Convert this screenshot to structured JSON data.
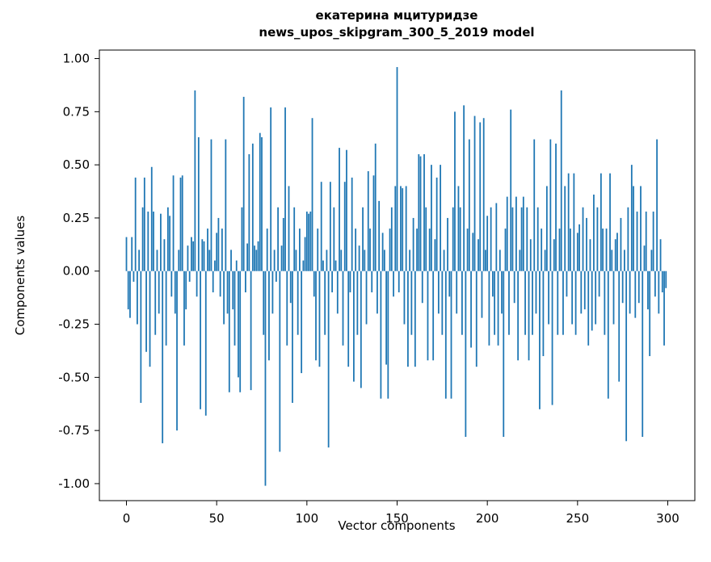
{
  "figure": {
    "title_line1": "екатерина мцитуридзе",
    "title_line2": "news_upos_skipgram_300_5_2019 model",
    "xlabel": "Vector components",
    "ylabel": "Components values"
  },
  "chart_data": {
    "type": "bar",
    "title": "екатерина мцитуридзе\nnews_upos_skipgram_300_5_2019 model",
    "xlabel": "Vector components",
    "ylabel": "Components values",
    "legend": null,
    "grid": false,
    "bar_color": "#1f77b4",
    "xlim": [
      -15,
      315
    ],
    "ylim": [
      -1.08,
      1.04
    ],
    "xticks": [
      0,
      50,
      100,
      150,
      200,
      250,
      300
    ],
    "yticks": [
      -1.0,
      -0.75,
      -0.5,
      -0.25,
      0.0,
      0.25,
      0.5,
      0.75,
      1.0
    ],
    "n_components": 300,
    "values": [
      0.16,
      -0.18,
      -0.22,
      0.16,
      -0.05,
      0.44,
      -0.25,
      0.1,
      -0.62,
      0.3,
      0.44,
      -0.38,
      0.28,
      -0.45,
      0.49,
      0.28,
      -0.3,
      0.1,
      -0.2,
      0.27,
      -0.81,
      0.15,
      -0.35,
      0.3,
      0.26,
      -0.12,
      0.45,
      -0.2,
      -0.75,
      0.1,
      0.44,
      0.45,
      -0.35,
      -0.18,
      0.12,
      -0.05,
      0.16,
      0.14,
      0.85,
      -0.12,
      0.63,
      -0.65,
      0.15,
      0.14,
      -0.68,
      0.2,
      0.1,
      0.62,
      -0.1,
      0.05,
      0.18,
      0.25,
      -0.12,
      0.2,
      -0.25,
      0.62,
      -0.2,
      -0.57,
      0.1,
      -0.18,
      -0.35,
      0.05,
      -0.5,
      -0.57,
      0.3,
      0.82,
      -0.1,
      0.13,
      0.55,
      -0.56,
      0.6,
      0.12,
      0.1,
      0.14,
      0.65,
      0.63,
      -0.3,
      -1.01,
      0.2,
      -0.42,
      0.77,
      -0.2,
      0.1,
      -0.05,
      0.3,
      -0.85,
      0.12,
      0.25,
      0.77,
      -0.35,
      0.4,
      -0.15,
      -0.62,
      0.3,
      0.1,
      -0.3,
      0.2,
      -0.48,
      0.05,
      0.16,
      0.28,
      0.27,
      0.28,
      0.72,
      -0.12,
      -0.42,
      0.2,
      -0.45,
      0.42,
      0.05,
      -0.3,
      0.1,
      -0.83,
      0.42,
      -0.1,
      0.3,
      0.05,
      -0.2,
      0.58,
      0.1,
      -0.35,
      0.42,
      0.57,
      -0.45,
      -0.1,
      0.44,
      -0.52,
      0.2,
      -0.3,
      0.12,
      -0.55,
      0.3,
      0.1,
      -0.25,
      0.47,
      0.2,
      -0.1,
      0.45,
      0.6,
      -0.2,
      0.33,
      -0.6,
      0.18,
      0.1,
      -0.44,
      -0.6,
      0.2,
      0.3,
      -0.12,
      0.4,
      0.96,
      -0.1,
      0.4,
      0.39,
      -0.25,
      0.4,
      -0.45,
      0.1,
      -0.3,
      0.25,
      -0.45,
      0.2,
      0.55,
      0.54,
      -0.15,
      0.55,
      0.3,
      -0.42,
      0.2,
      0.5,
      -0.42,
      0.15,
      0.44,
      -0.2,
      0.5,
      -0.3,
      0.1,
      -0.6,
      0.25,
      -0.12,
      -0.6,
      0.3,
      0.75,
      -0.2,
      0.4,
      0.3,
      -0.3,
      0.78,
      -0.78,
      0.2,
      0.62,
      -0.36,
      0.18,
      0.73,
      -0.45,
      0.15,
      0.7,
      -0.22,
      0.72,
      0.1,
      0.26,
      -0.35,
      0.3,
      -0.12,
      -0.3,
      0.32,
      -0.35,
      0.1,
      -0.2,
      -0.78,
      0.2,
      0.35,
      -0.3,
      0.76,
      0.3,
      -0.15,
      0.35,
      -0.42,
      0.1,
      0.3,
      0.35,
      -0.3,
      0.3,
      -0.42,
      0.15,
      -0.3,
      0.62,
      -0.2,
      0.3,
      -0.65,
      0.2,
      -0.4,
      0.1,
      0.4,
      -0.25,
      0.62,
      -0.63,
      0.15,
      0.6,
      -0.3,
      0.2,
      0.85,
      -0.3,
      0.4,
      -0.12,
      0.46,
      0.2,
      -0.25,
      0.46,
      -0.3,
      0.18,
      0.22,
      -0.2,
      0.3,
      -0.18,
      0.25,
      -0.35,
      0.15,
      -0.28,
      0.36,
      -0.25,
      0.3,
      -0.12,
      0.46,
      0.2,
      -0.3,
      0.2,
      -0.6,
      0.46,
      0.1,
      -0.25,
      0.15,
      0.18,
      -0.52,
      0.25,
      -0.15,
      0.1,
      -0.8,
      0.3,
      -0.2,
      0.5,
      0.4,
      -0.22,
      0.28,
      -0.15,
      0.4,
      -0.78,
      0.12,
      0.28,
      -0.18,
      -0.4,
      0.1,
      0.28,
      -0.12,
      0.62,
      -0.2,
      0.15,
      -0.1,
      -0.35,
      -0.08
    ]
  }
}
